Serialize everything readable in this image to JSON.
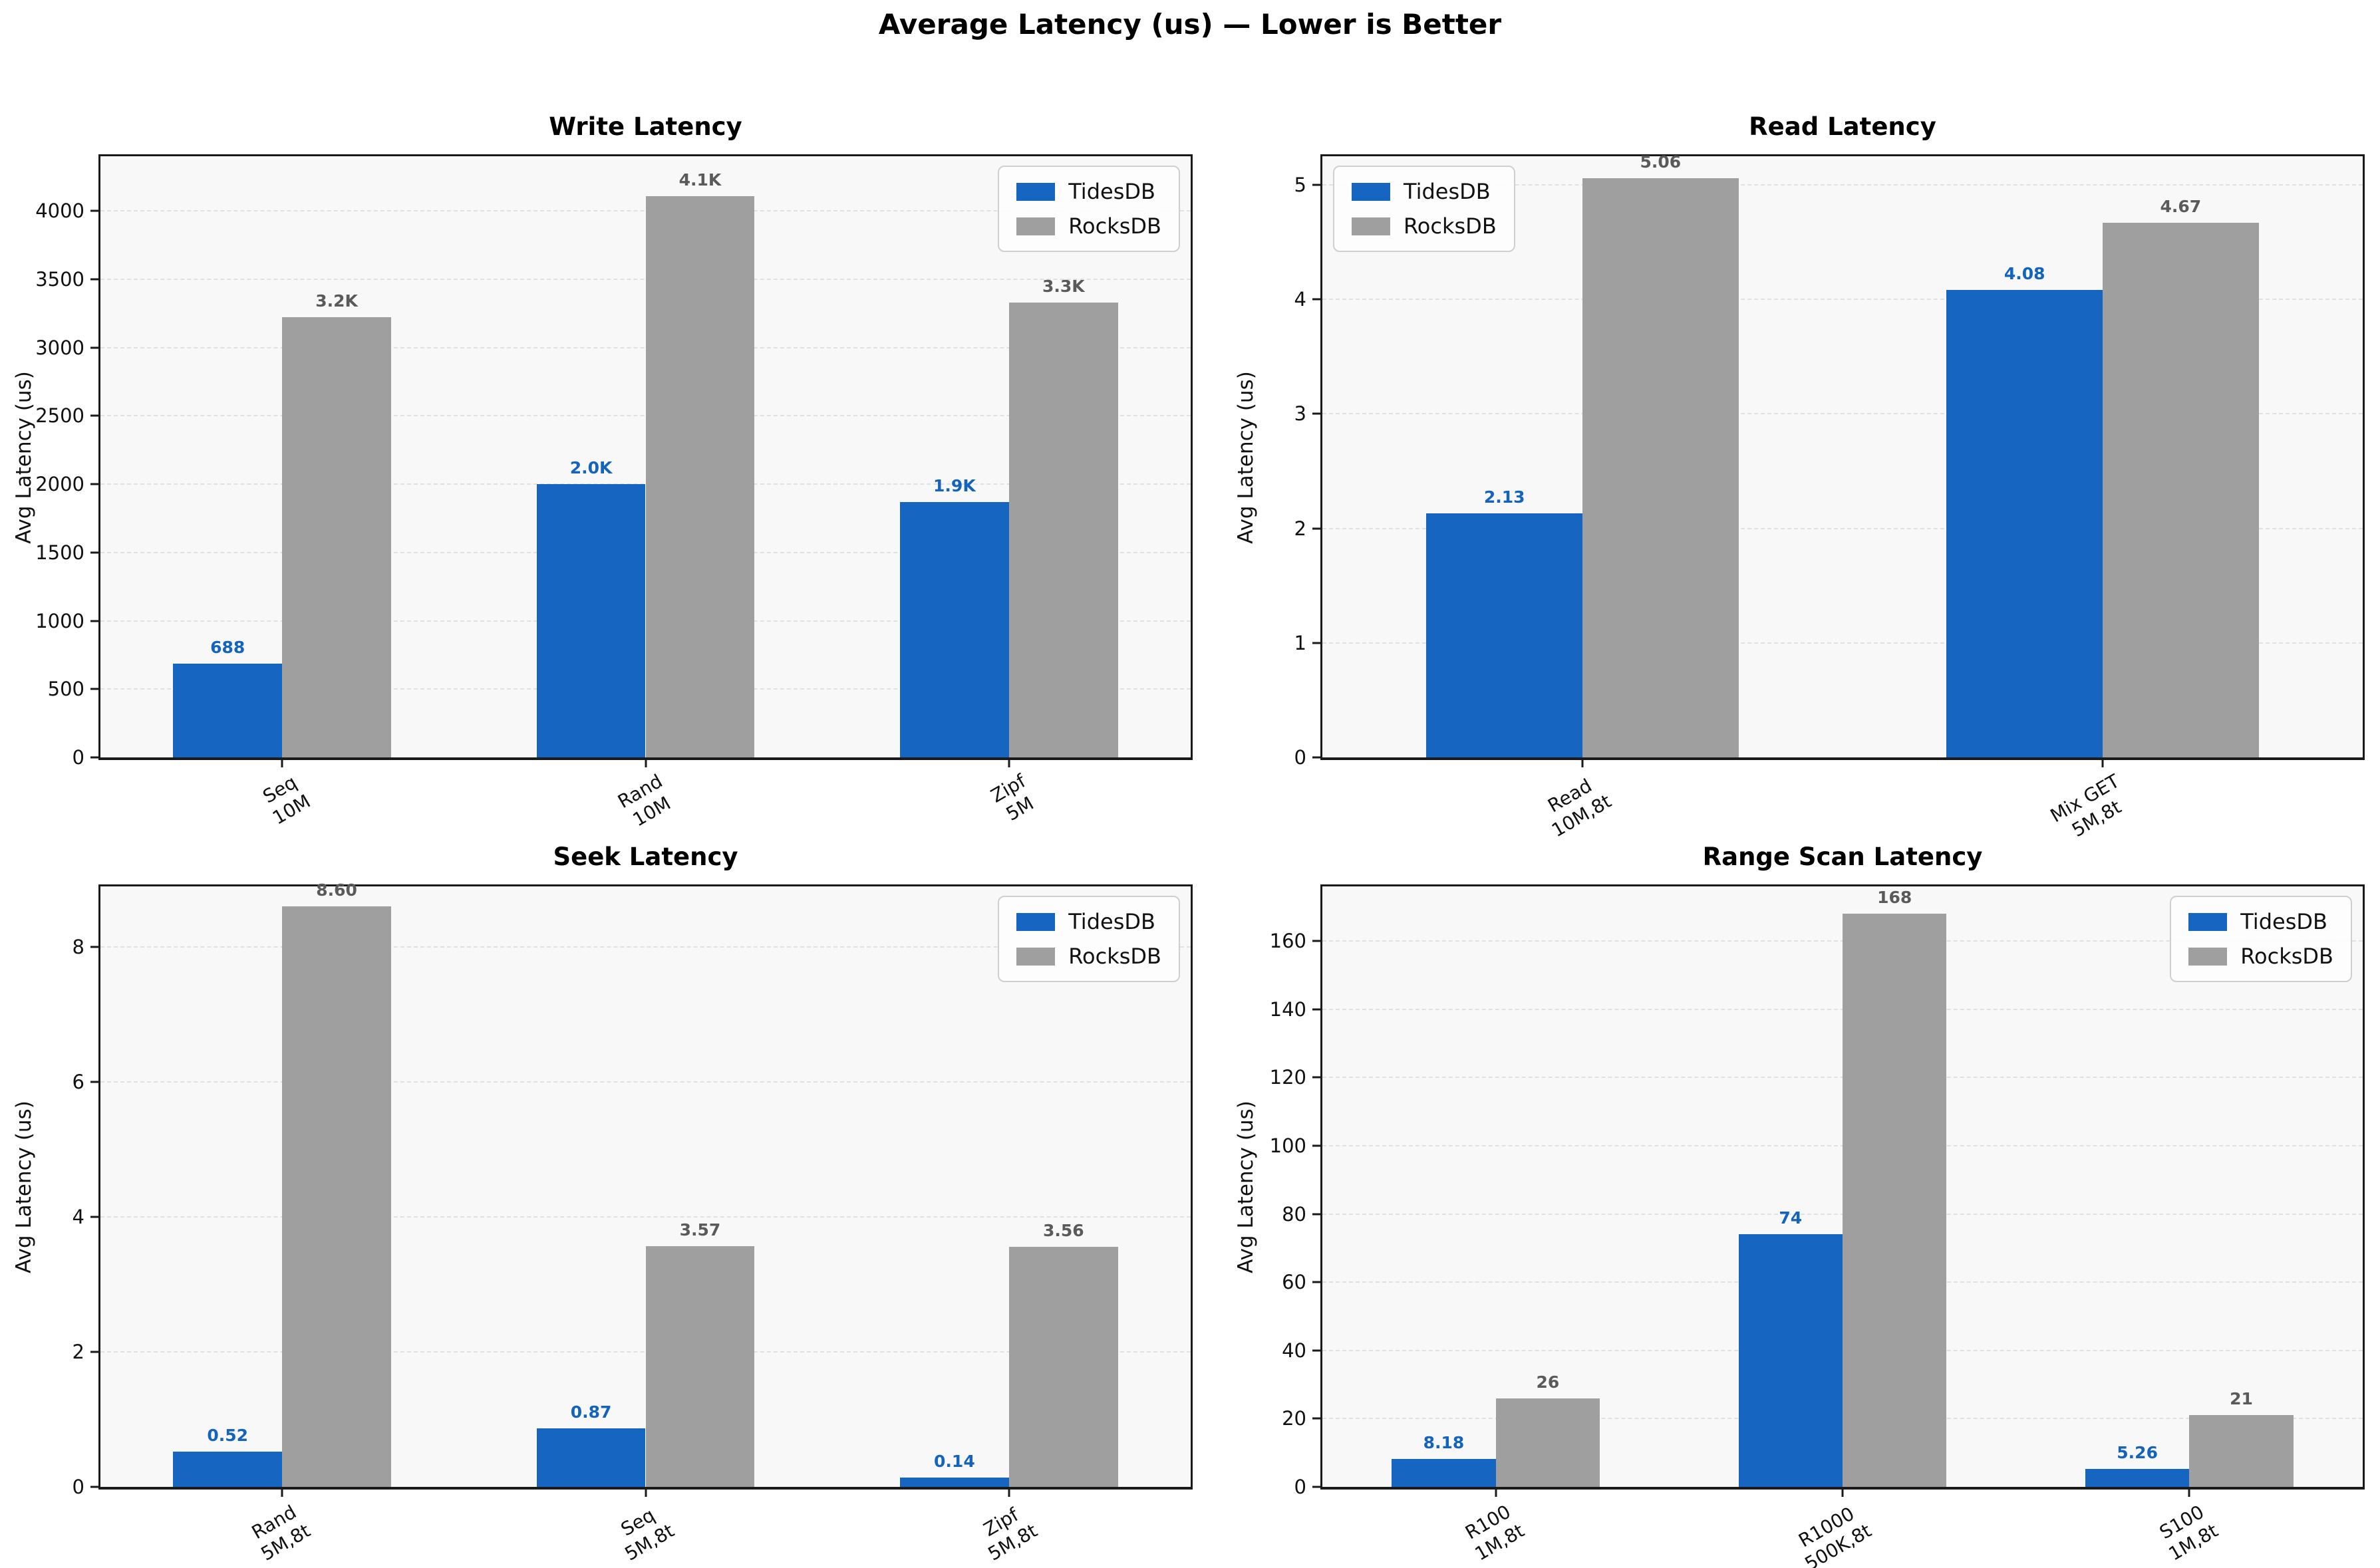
{
  "figure": {
    "title": "Average Latency (us) — Lower is Better"
  },
  "colors": {
    "tidesdb": "#1666C1",
    "rocksdb": "#9F9F9F",
    "tidesdb_label": "#1463BC",
    "rocksdb_label": "#5A5A5A",
    "plot_background": "#f8f8f8",
    "gridline": "#e1e1e1"
  },
  "legend": {
    "labels": [
      "TidesDB",
      "RocksDB"
    ]
  },
  "chart_data": [
    {
      "type": "bar",
      "title": "Write Latency",
      "ylabel": "Avg Latency (us)",
      "categories": [
        "Seq\n10M",
        "Rand\n10M",
        "Zipf\n5M"
      ],
      "series": [
        {
          "name": "TidesDB",
          "values": [
            688,
            2000,
            1870
          ],
          "labels": [
            "688",
            "2.0K",
            "1.9K"
          ]
        },
        {
          "name": "RocksDB",
          "values": [
            3220,
            4110,
            3330
          ],
          "labels": [
            "3.2K",
            "4.1K",
            "3.3K"
          ]
        }
      ],
      "ylim": [
        0,
        4400
      ],
      "yticks": [
        0,
        500,
        1000,
        1500,
        2000,
        2500,
        3000,
        3500,
        4000
      ],
      "grid": true,
      "legend_position": "top-right"
    },
    {
      "type": "bar",
      "title": "Read Latency",
      "ylabel": "Avg Latency (us)",
      "categories": [
        "Read\n10M,8t",
        "Mix GET\n5M,8t"
      ],
      "series": [
        {
          "name": "TidesDB",
          "values": [
            2.13,
            4.08
          ],
          "labels": [
            "2.13",
            "4.08"
          ]
        },
        {
          "name": "RocksDB",
          "values": [
            5.06,
            4.67
          ],
          "labels": [
            "5.06",
            "4.67"
          ]
        }
      ],
      "ylim": [
        0,
        5.25
      ],
      "yticks": [
        0,
        1,
        2,
        3,
        4,
        5
      ],
      "grid": true,
      "legend_position": "top-left"
    },
    {
      "type": "bar",
      "title": "Seek Latency",
      "ylabel": "Avg Latency (us)",
      "categories": [
        "Rand\n5M,8t",
        "Seq\n5M,8t",
        "Zipf\n5M,8t"
      ],
      "series": [
        {
          "name": "TidesDB",
          "values": [
            0.52,
            0.87,
            0.14
          ],
          "labels": [
            "0.52",
            "0.87",
            "0.14"
          ]
        },
        {
          "name": "RocksDB",
          "values": [
            8.6,
            3.57,
            3.56
          ],
          "labels": [
            "8.60",
            "3.57",
            "3.56"
          ]
        }
      ],
      "ylim": [
        0,
        8.9
      ],
      "yticks": [
        0,
        2,
        4,
        6,
        8
      ],
      "grid": true,
      "legend_position": "top-right"
    },
    {
      "type": "bar",
      "title": "Range Scan Latency",
      "ylabel": "Avg Latency (us)",
      "categories": [
        "R100\n1M,8t",
        "R1000\n500K,8t",
        "S100\n1M,8t"
      ],
      "series": [
        {
          "name": "TidesDB",
          "values": [
            8.18,
            74,
            5.26
          ],
          "labels": [
            "8.18",
            "74",
            "5.26"
          ]
        },
        {
          "name": "RocksDB",
          "values": [
            26,
            168,
            21
          ],
          "labels": [
            "26",
            "168",
            "21"
          ]
        }
      ],
      "ylim": [
        0,
        176
      ],
      "yticks": [
        0,
        20,
        40,
        60,
        80,
        100,
        120,
        140,
        160
      ],
      "grid": true,
      "legend_position": "top-right"
    }
  ]
}
